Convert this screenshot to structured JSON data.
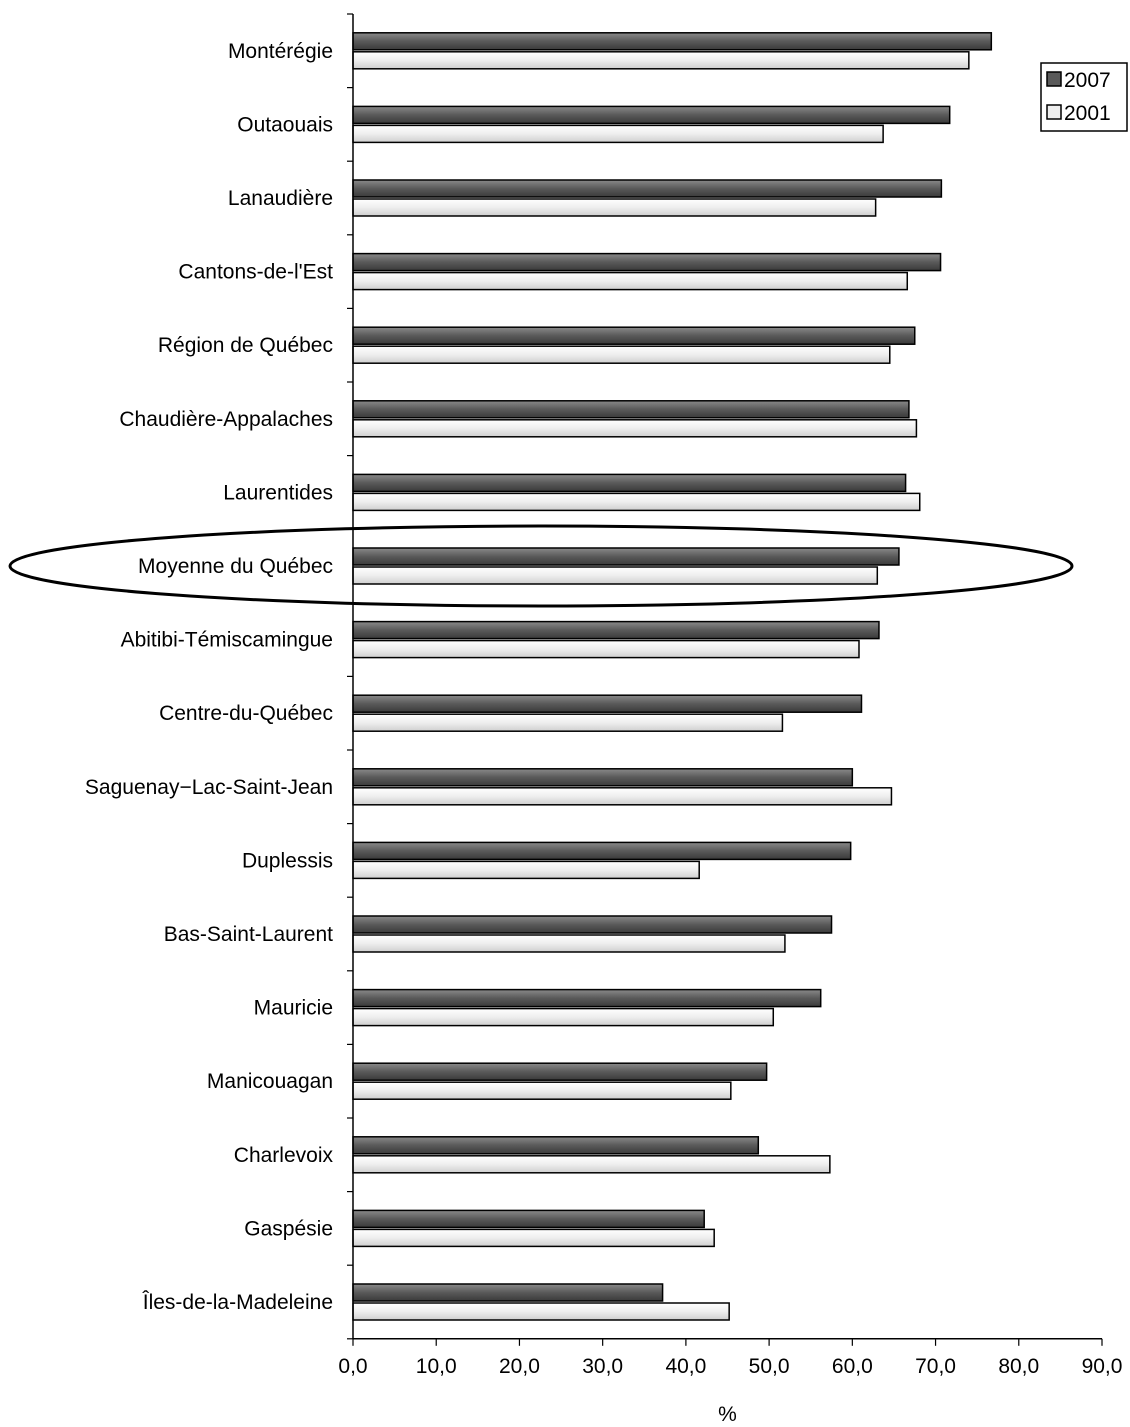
{
  "chart_data": {
    "type": "bar",
    "orientation": "horizontal",
    "categories": [
      "Montérégie",
      "Outaouais",
      "Lanaudière",
      "Cantons-de-l'Est",
      "Région de Québec",
      "Chaudière-Appalaches",
      "Laurentides",
      "Moyenne du Québec",
      "Abitibi-Témiscamingue",
      "Centre-du-Québec",
      "Saguenay−Lac-Saint-Jean",
      "Duplessis",
      "Bas-Saint-Laurent",
      "Mauricie",
      "Manicouagan",
      "Charlevoix",
      "Gaspésie",
      "Îles-de-la-Madeleine"
    ],
    "series": [
      {
        "name": "2007",
        "color": "#5a5a5a",
        "values": [
          76.7,
          71.7,
          70.7,
          70.6,
          67.5,
          66.8,
          66.4,
          65.6,
          63.2,
          61.1,
          60.0,
          59.8,
          57.5,
          56.2,
          49.7,
          48.7,
          42.2,
          37.2
        ]
      },
      {
        "name": "2001",
        "color": "#eeeeee",
        "values": [
          74.0,
          63.7,
          62.8,
          66.6,
          64.5,
          67.7,
          68.1,
          63.0,
          60.8,
          51.6,
          64.7,
          41.6,
          51.9,
          50.5,
          45.4,
          57.3,
          43.4,
          45.2
        ]
      }
    ],
    "xlim": [
      0,
      90
    ],
    "xticks": [
      "0,0",
      "10,0",
      "20,0",
      "30,0",
      "40,0",
      "50,0",
      "60,0",
      "70,0",
      "80,0",
      "90,0"
    ],
    "xlabel": "%",
    "ylabel": "",
    "title": "",
    "legend_position": "top-right",
    "grid": false,
    "highlighted_category": "Moyenne du Québec",
    "highlight_shape": "ellipse"
  }
}
